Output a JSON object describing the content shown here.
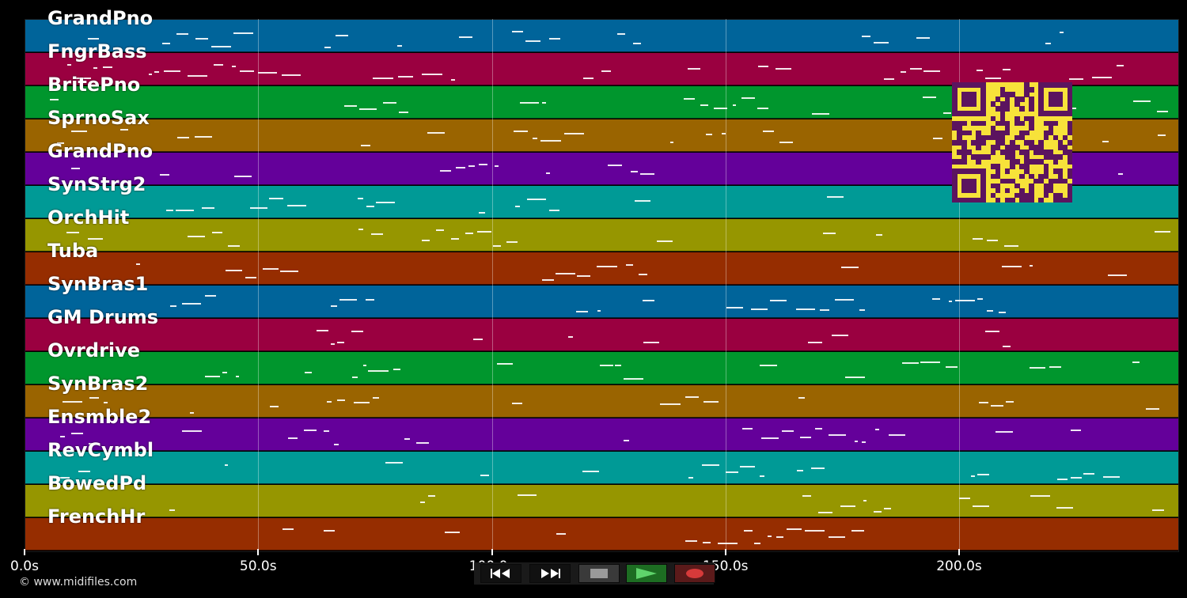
{
  "window": {
    "footer": "© www.midifiles.com"
  },
  "timeline": {
    "ticks": [
      "0.0s",
      "50.0s",
      "100.0s",
      "150.0s",
      "200.0s"
    ],
    "tick_seconds": [
      0,
      50,
      100,
      150,
      200
    ],
    "duration_seconds": 245
  },
  "tracks": [
    {
      "label": "GrandPno",
      "color": "#00649a"
    },
    {
      "label": "FngrBass",
      "color": "#9a0040"
    },
    {
      "label": "BritePno",
      "color": "#00962d"
    },
    {
      "label": "SprnoSax",
      "color": "#9a6400"
    },
    {
      "label": "GrandPno",
      "color": "#64009a"
    },
    {
      "label": "SynStrg2",
      "color": "#009a96"
    },
    {
      "label": "OrchHit",
      "color": "#969600"
    },
    {
      "label": "Tuba",
      "color": "#962d00"
    },
    {
      "label": "SynBras1",
      "color": "#00649a"
    },
    {
      "label": "GM Drums",
      "color": "#9a0040"
    },
    {
      "label": "Ovrdrive",
      "color": "#00962d"
    },
    {
      "label": "SynBras2",
      "color": "#9a6400"
    },
    {
      "label": "Ensmble2",
      "color": "#64009a"
    },
    {
      "label": "RevCymbl",
      "color": "#009a96"
    },
    {
      "label": "BowedPd",
      "color": "#969600"
    },
    {
      "label": "FrenchHr",
      "color": "#962d00"
    }
  ],
  "transport": {
    "rewind_icon": "rewind-icon",
    "forward_icon": "fast-forward-icon",
    "stop_icon": "stop-icon",
    "play_icon": "play-icon",
    "record_icon": "record-icon"
  },
  "qr_code": {
    "icon": "qr-code-icon",
    "fg": "#5b145f",
    "bg": "#f7e23a"
  }
}
